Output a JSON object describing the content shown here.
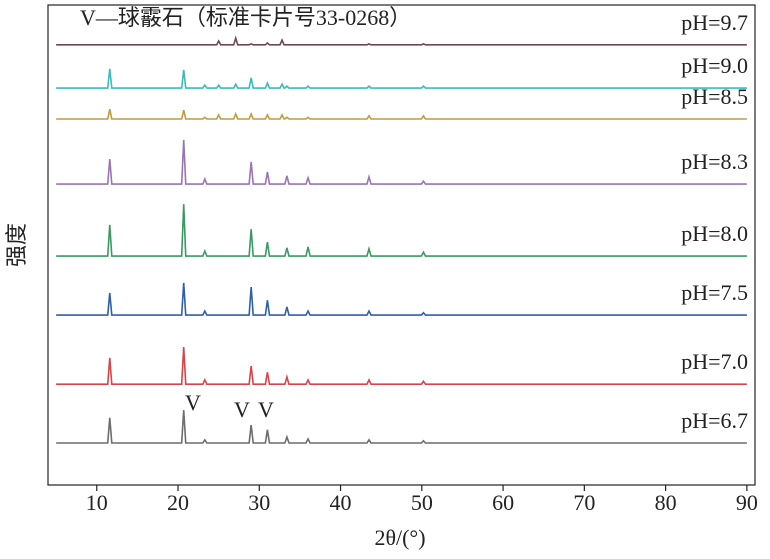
{
  "chart_data": {
    "type": "line",
    "y_label": "强度",
    "x_label": "2θ/(°)",
    "key_text": "V—球霰石（标准卡片号33-0268）",
    "annotations": [
      "V",
      "V",
      "V"
    ],
    "xlim": [
      4,
      91
    ],
    "xticks": [
      10,
      20,
      30,
      40,
      50,
      60,
      70,
      80,
      90
    ],
    "ylim": [
      0,
      100
    ],
    "x": [
      5,
      11.35,
      11.6,
      11.85,
      20.45,
      20.7,
      20.95,
      23.05,
      23.3,
      23.55,
      24.75,
      25.0,
      25.25,
      26.85,
      27.1,
      27.35,
      28.75,
      29.0,
      29.25,
      30.75,
      31.0,
      31.25,
      32.55,
      32.8,
      33.05,
      33.15,
      33.4,
      33.65,
      35.75,
      36.0,
      36.25,
      43.25,
      43.5,
      43.75,
      49.95,
      50.2,
      50.45,
      90
    ],
    "series": [
      {
        "name": "pH=6.7",
        "color": "#6d6d6d",
        "values": [
          8.75,
          8.75,
          14,
          8.75,
          8.75,
          15.6,
          8.75,
          8.75,
          9.4,
          8.75,
          8.75,
          8.75,
          8.75,
          8.75,
          8.75,
          8.75,
          8.75,
          12.5,
          8.75,
          8.75,
          11.5,
          8.75,
          8.75,
          8.75,
          8.75,
          8.75,
          10,
          8.75,
          8.75,
          9.6,
          8.75,
          8.75,
          9.4,
          8.75,
          8.75,
          9.2,
          8.75,
          8.75
        ]
      },
      {
        "name": "pH=7.0",
        "color": "#d9434a",
        "values": [
          21,
          21,
          26.5,
          21,
          21,
          28.75,
          21,
          21,
          21.9,
          21,
          21,
          21,
          21,
          21,
          21,
          21,
          21,
          24.8,
          21,
          21,
          23.5,
          21,
          21,
          21,
          21,
          21,
          22.5,
          21,
          21,
          21.9,
          21,
          21,
          21.9,
          21,
          21,
          21.6,
          21,
          21
        ]
      },
      {
        "name": "pH=7.5",
        "color": "#2e60a8",
        "values": [
          35.4,
          35.4,
          40,
          35.4,
          35.4,
          42.1,
          35.4,
          35.4,
          36.25,
          35.4,
          35.4,
          35.4,
          35.4,
          35.4,
          35.4,
          35.4,
          35.4,
          41.25,
          35.4,
          35.4,
          38.5,
          35.4,
          35.4,
          35.4,
          35.4,
          35.4,
          37.1,
          35.4,
          35.4,
          36.25,
          35.4,
          35.4,
          36.25,
          35.4,
          35.4,
          35.9,
          35.4,
          35.4
        ]
      },
      {
        "name": "pH=8.0",
        "color": "#3a9a63",
        "values": [
          47.7,
          47.7,
          54.2,
          47.7,
          47.7,
          58.5,
          47.7,
          47.7,
          48.75,
          47.7,
          47.7,
          47.7,
          47.7,
          47.7,
          47.7,
          47.7,
          47.7,
          53.3,
          47.7,
          47.7,
          50.6,
          47.7,
          47.7,
          47.7,
          47.7,
          47.7,
          49.4,
          47.7,
          47.7,
          49.6,
          47.7,
          47.7,
          49.2,
          47.7,
          47.7,
          48.5,
          47.7,
          47.7
        ]
      },
      {
        "name": "pH=8.3",
        "color": "#9b74b4",
        "values": [
          62.7,
          62.7,
          67.9,
          62.7,
          62.7,
          71.9,
          62.7,
          62.7,
          63.75,
          62.7,
          62.7,
          62.7,
          62.7,
          62.7,
          62.7,
          62.7,
          62.7,
          67.3,
          62.7,
          62.7,
          65.2,
          62.7,
          62.7,
          62.7,
          62.7,
          62.7,
          64.4,
          62.7,
          62.7,
          64,
          62.7,
          62.7,
          64.2,
          62.7,
          62.7,
          63.3,
          62.7,
          62.7
        ]
      },
      {
        "name": "pH=8.5",
        "color": "#c49a3a",
        "values": [
          76.25,
          76.25,
          78.3,
          76.25,
          76.25,
          78.1,
          76.25,
          76.25,
          76.6,
          76.25,
          76.25,
          77.1,
          76.25,
          76.25,
          77.3,
          76.25,
          76.25,
          77.3,
          76.25,
          76.25,
          77.1,
          76.25,
          76.25,
          77.1,
          76.25,
          76.25,
          76.6,
          76.25,
          76.25,
          76.6,
          76.25,
          76.25,
          76.9,
          76.25,
          76.25,
          76.9,
          76.25,
          76.25
        ]
      },
      {
        "name": "pH=9.0",
        "color": "#3bbcbc",
        "values": [
          82.7,
          82.7,
          86.7,
          82.7,
          82.7,
          86.5,
          82.7,
          82.7,
          83.3,
          82.7,
          82.7,
          83.3,
          82.7,
          82.7,
          83.5,
          82.7,
          82.7,
          84.8,
          82.7,
          82.7,
          83.75,
          82.7,
          82.7,
          83.5,
          82.7,
          82.7,
          83.1,
          82.7,
          82.7,
          83.1,
          82.7,
          82.7,
          83.1,
          82.7,
          82.7,
          83.1,
          82.7,
          82.7
        ]
      },
      {
        "name": "pH=9.7",
        "color": "#6e4a50",
        "values": [
          91.7,
          91.7,
          91.7,
          91.7,
          91.7,
          91.7,
          91.7,
          91.7,
          91.7,
          91.7,
          91.7,
          92.5,
          91.7,
          91.7,
          93.1,
          91.7,
          91.7,
          91.9,
          91.7,
          91.7,
          92.1,
          91.7,
          91.7,
          92.7,
          91.7,
          91.7,
          91.7,
          91.7,
          91.7,
          91.7,
          91.7,
          91.7,
          91.9,
          91.7,
          91.7,
          91.9,
          91.7,
          91.7
        ]
      }
    ]
  }
}
